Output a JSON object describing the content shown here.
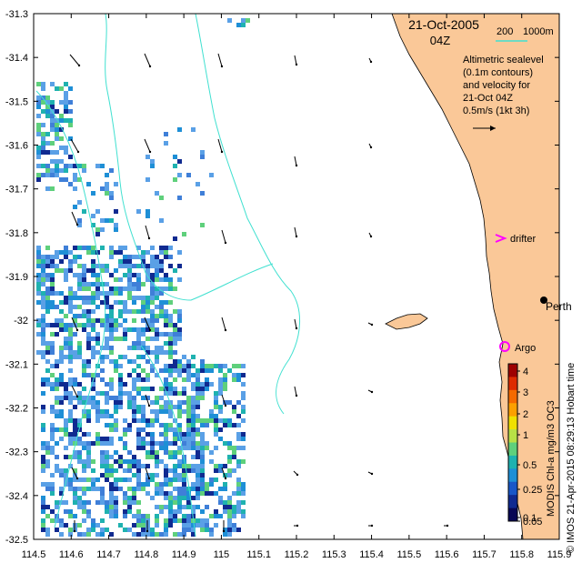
{
  "map": {
    "date_label": "21-Oct-2005",
    "time_label": "04Z",
    "scale_bar": {
      "label_200": "200",
      "label_1000": "1000m",
      "color": "#40e0d0"
    },
    "legend_lines": [
      "Altimetric sealevel",
      "(0.1m contours)",
      "and velocity for",
      "21-Oct 04Z",
      "0.5m/s (1kt 3h)"
    ],
    "markers": {
      "drifter": {
        "label": "drifter",
        "color": "#ff00ff"
      },
      "argo": {
        "label": "Argo",
        "color": "#ff00ff"
      },
      "city": {
        "label": "Perth"
      }
    },
    "x_ticks": [
      "114.5",
      "114.6",
      "114.7",
      "114.8",
      "114.9",
      "115",
      "115.1",
      "115.2",
      "115.3",
      "115.4",
      "115.5",
      "115.6",
      "115.7",
      "115.8",
      "115.9"
    ],
    "y_ticks": [
      "-31.3",
      "-31.4",
      "-31.5",
      "-31.6",
      "-31.7",
      "-31.8",
      "-31.9",
      "-32",
      "-32.1",
      "-32.2",
      "-32.3",
      "-32.4",
      "-32.5"
    ],
    "colorbar": {
      "ticks": [
        "4",
        "3",
        "2",
        "1",
        "0.5",
        "0.25",
        "0.1",
        "0.05"
      ],
      "colors": [
        "#9e0000",
        "#dd2b00",
        "#f56a00",
        "#fca000",
        "#f0e000",
        "#b8e046",
        "#5fd07c",
        "#1fb2b0",
        "#1e8fd6",
        "#1957c8",
        "#102a90",
        "#080855"
      ]
    },
    "vertical_caption": "MODIS Chl-a mg/m3 OC3",
    "credit": "© IMOS 21-Apr-2015 08:29:13 Hobart time",
    "colors": {
      "land": "#fac898",
      "sea": "#ffffff",
      "contour": "#40e0d0",
      "chl_base": "#5aa0e6"
    }
  }
}
